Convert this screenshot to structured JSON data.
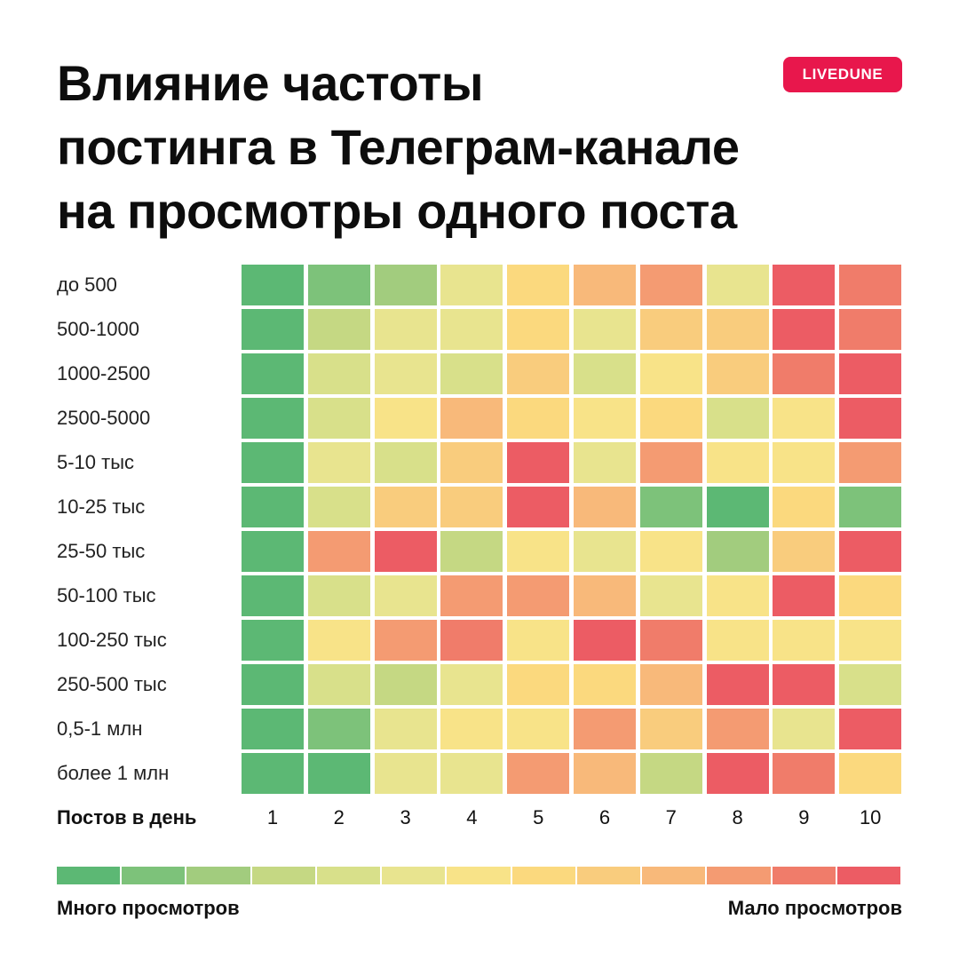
{
  "title_lines": [
    "Влияние частоты",
    "постинга в Телеграм-канале",
    "на просмотры одного поста"
  ],
  "brand": "LIVEDUNE",
  "legend": {
    "high_label": "Много просмотров",
    "low_label": "Мало просмотров",
    "colors": [
      "#5cb874",
      "#7dc27a",
      "#a2cc7e",
      "#c5d883",
      "#d8e08a",
      "#e8e48f",
      "#f8e388",
      "#fbd97e",
      "#f9cc7d",
      "#f8b97a",
      "#f49b72",
      "#f07c6a",
      "#ec5c64"
    ]
  },
  "chart_data": {
    "type": "heatmap",
    "title": "Влияние частоты постинга в Телеграм-канале на просмотры одного поста",
    "xlabel": "Постов в день",
    "x": [
      "1",
      "2",
      "3",
      "4",
      "5",
      "6",
      "7",
      "8",
      "9",
      "10"
    ],
    "y": [
      "до 500",
      "500-1000",
      "1000-2500",
      "2500-5000",
      "5-10 тыс",
      "10-25 тыс",
      "25-50 тыс",
      "50-100 тыс",
      "100-250 тыс",
      "250-500 тыс",
      "0,5-1 млн",
      "более 1 млн"
    ],
    "scale": "color index 0 = Много просмотров … 12 = Мало просмотров",
    "values": [
      [
        0,
        1,
        2,
        5,
        7,
        9,
        10,
        5,
        12,
        11
      ],
      [
        0,
        3,
        5,
        5,
        7,
        5,
        8,
        8,
        12,
        11
      ],
      [
        0,
        4,
        5,
        4,
        8,
        4,
        6,
        8,
        11,
        12
      ],
      [
        0,
        4,
        6,
        9,
        7,
        6,
        7,
        4,
        6,
        12
      ],
      [
        0,
        5,
        4,
        8,
        12,
        5,
        10,
        6,
        6,
        10
      ],
      [
        0,
        4,
        8,
        8,
        12,
        9,
        1,
        0,
        7,
        1
      ],
      [
        0,
        10,
        12,
        3,
        6,
        5,
        6,
        2,
        8,
        12
      ],
      [
        0,
        4,
        5,
        10,
        10,
        9,
        5,
        6,
        12,
        7
      ],
      [
        0,
        6,
        10,
        11,
        6,
        12,
        11,
        6,
        6,
        6
      ],
      [
        0,
        4,
        3,
        5,
        7,
        7,
        9,
        12,
        12,
        4
      ],
      [
        0,
        1,
        5,
        6,
        6,
        10,
        8,
        10,
        5,
        12
      ],
      [
        0,
        0,
        5,
        5,
        10,
        9,
        3,
        12,
        11,
        7
      ]
    ]
  }
}
